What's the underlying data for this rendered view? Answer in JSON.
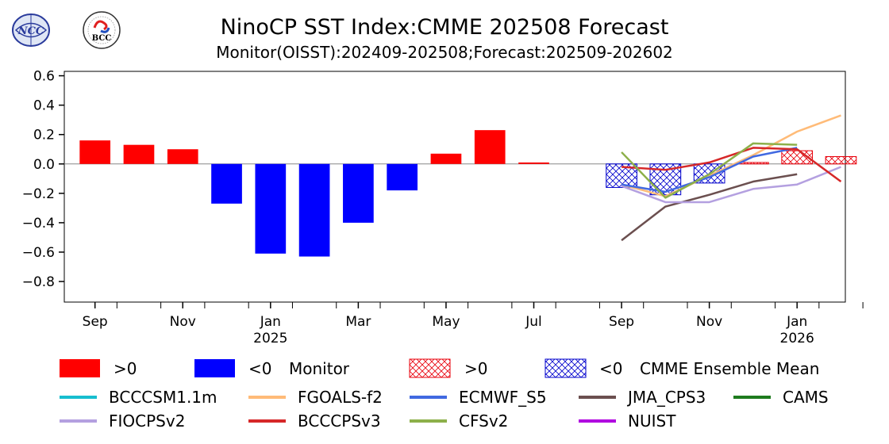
{
  "logos": {
    "left": {
      "name": "ncc-logo",
      "text": "NCC"
    },
    "right": {
      "name": "bcc-logo",
      "text": "BCC"
    }
  },
  "chart_data": {
    "type": "bar",
    "title": "NinoCP SST Index:CMME 202508 Forecast",
    "subtitle": "Monitor(OISST):202409-202508;Forecast:202509-202602",
    "ylim": [
      -0.94,
      0.63
    ],
    "yticks": [
      -0.8,
      -0.6,
      -0.4,
      -0.2,
      0.0,
      0.2,
      0.4,
      0.6
    ],
    "ytick_labels": [
      "−0.8",
      "−0.6",
      "−0.4",
      "−0.2",
      "0.0",
      "0.2",
      "0.4",
      "0.6"
    ],
    "months": [
      "2024-09",
      "2024-10",
      "2024-11",
      "2024-12",
      "2025-01",
      "2025-02",
      "2025-03",
      "2025-04",
      "2025-05",
      "2025-06",
      "2025-07",
      "2025-08",
      "2025-09",
      "2025-10",
      "2025-11",
      "2025-12",
      "2026-01",
      "2026-02"
    ],
    "xtick_labels": [
      {
        "month": "2024-09",
        "text": "Sep",
        "year": ""
      },
      {
        "month": "2024-11",
        "text": "Nov",
        "year": ""
      },
      {
        "month": "2025-01",
        "text": "Jan",
        "year": "2025"
      },
      {
        "month": "2025-03",
        "text": "Mar",
        "year": ""
      },
      {
        "month": "2025-05",
        "text": "May",
        "year": ""
      },
      {
        "month": "2025-07",
        "text": "Jul",
        "year": ""
      },
      {
        "month": "2025-09",
        "text": "Sep",
        "year": ""
      },
      {
        "month": "2025-11",
        "text": "Nov",
        "year": ""
      },
      {
        "month": "2026-01",
        "text": "Jan",
        "year": "2026"
      }
    ],
    "monitor": {
      "months": [
        "2024-09",
        "2024-10",
        "2024-11",
        "2024-12",
        "2025-01",
        "2025-02",
        "2025-03",
        "2025-04",
        "2025-05",
        "2025-06",
        "2025-07"
      ],
      "values": [
        0.16,
        0.13,
        0.1,
        -0.27,
        -0.61,
        -0.63,
        -0.4,
        -0.18,
        0.07,
        0.23,
        0.01
      ],
      "pos_color": "#ff0000",
      "neg_color": "#0000ff"
    },
    "ensemble_mean": {
      "months": [
        "2025-09",
        "2025-10",
        "2025-11",
        "2025-12",
        "2026-01",
        "2026-02"
      ],
      "values": [
        -0.16,
        -0.21,
        -0.13,
        0.01,
        0.09,
        0.05
      ],
      "pos_color": "#e8000b",
      "neg_color": "#0000cc"
    },
    "series": [
      {
        "name": "BCCCSM1.1m",
        "color": "#17becf",
        "months": [],
        "values": []
      },
      {
        "name": "FGOALS-f2",
        "color": "#ffbb78",
        "months": [
          "2025-09",
          "2025-10",
          "2025-11",
          "2025-12",
          "2026-01",
          "2026-02"
        ],
        "values": [
          -0.14,
          -0.22,
          -0.08,
          0.06,
          0.22,
          0.33
        ]
      },
      {
        "name": "ECMWF_S5",
        "color": "#4169e1",
        "months": [
          "2025-09",
          "2025-10",
          "2025-11",
          "2025-12",
          "2026-01"
        ],
        "values": [
          -0.14,
          -0.19,
          -0.09,
          0.05,
          0.11
        ]
      },
      {
        "name": "JMA_CPS3",
        "color": "#6b4f4f",
        "months": [
          "2025-09",
          "2025-10",
          "2025-11",
          "2025-12",
          "2026-01"
        ],
        "values": [
          -0.52,
          -0.29,
          -0.21,
          -0.12,
          -0.07
        ]
      },
      {
        "name": "CAMS",
        "color": "#1e7b1e",
        "months": [],
        "values": []
      },
      {
        "name": "FIOCPSv2",
        "color": "#b4a0e0",
        "months": [
          "2025-09",
          "2025-10",
          "2025-11",
          "2025-12",
          "2026-01",
          "2026-02"
        ],
        "values": [
          -0.15,
          -0.26,
          -0.26,
          -0.17,
          -0.14,
          -0.02
        ]
      },
      {
        "name": "BCCCPSv3",
        "color": "#d62728",
        "months": [
          "2025-09",
          "2025-10",
          "2025-11",
          "2025-12",
          "2026-01",
          "2026-02"
        ],
        "values": [
          -0.02,
          -0.04,
          0.01,
          0.11,
          0.1,
          -0.12
        ]
      },
      {
        "name": "CFSv2",
        "color": "#8db04a",
        "months": [
          "2025-09",
          "2025-10",
          "2025-11",
          "2025-12",
          "2026-01"
        ],
        "values": [
          0.08,
          -0.23,
          -0.07,
          0.14,
          0.13
        ]
      },
      {
        "name": "NUIST",
        "color": "#b000e0",
        "months": [],
        "values": []
      }
    ],
    "legend": {
      "placement": "bottom",
      "monitor_pos_label": ">0",
      "monitor_neg_label": "<0",
      "monitor_title": "Monitor",
      "cmme_pos_label": ">0",
      "cmme_neg_label": "<0",
      "cmme_title": "CMME Ensemble Mean"
    }
  }
}
